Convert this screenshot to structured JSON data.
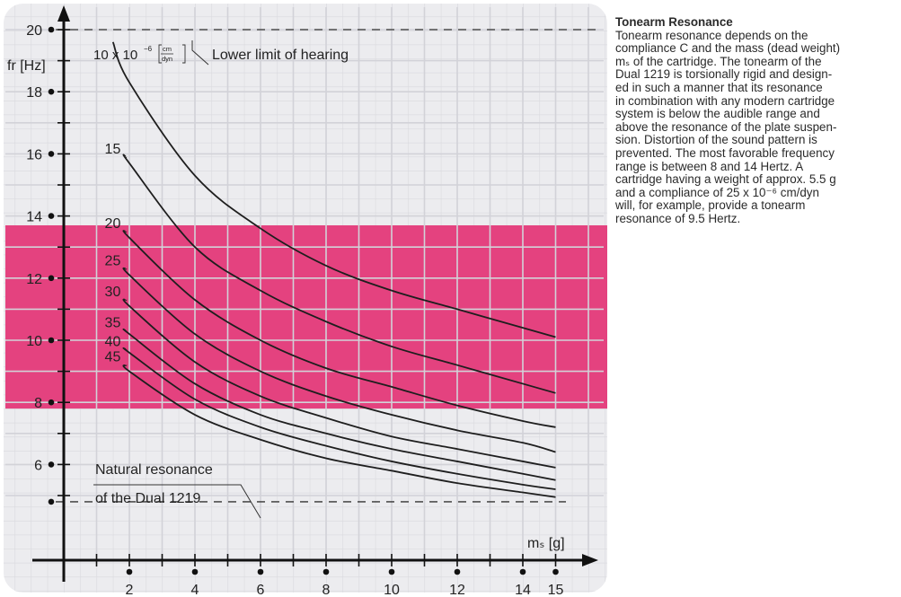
{
  "chart_data": {
    "type": "line",
    "xlabel": "mₛ [g]",
    "ylabel": "fr [Hz]",
    "xlim": [
      0,
      16
    ],
    "ylim": [
      4.2,
      20.2
    ],
    "x_ticks": [
      2,
      4,
      6,
      8,
      10,
      12,
      14,
      15
    ],
    "x_tick_labels": [
      "2",
      "4",
      "6",
      "8",
      "10",
      "12",
      "14",
      "15"
    ],
    "y_ticks": [
      6,
      8,
      10,
      12,
      14,
      16,
      18,
      20
    ],
    "y_tick_labels": [
      "6",
      "8",
      "10",
      "12",
      "14",
      "16",
      "18",
      "20"
    ],
    "grid": true,
    "favorable_band": {
      "from": 7.8,
      "to": 13.7,
      "color": "#e4427f"
    },
    "hearing_limit": {
      "y": 20,
      "label": "Lower limit of hearing"
    },
    "natural_resonance": {
      "y": 4.8,
      "label_line1": "Natural resonance",
      "label_line2": "of the Dual 1219"
    },
    "compliance_unit": {
      "prefix": "10 x 10",
      "exponent": "−6",
      "numerator": "cm",
      "denominator": "dyn"
    },
    "series": [
      {
        "name": "10",
        "x": [
          1.5,
          2,
          4,
          6,
          8,
          10,
          12,
          14,
          15
        ],
        "y": [
          19.6,
          18.3,
          15.3,
          13.6,
          12.4,
          11.6,
          11.0,
          10.4,
          10.1
        ]
      },
      {
        "name": "15",
        "x": [
          1.9,
          2,
          4,
          6,
          8,
          10,
          12,
          14,
          15
        ],
        "y": [
          15.9,
          15.7,
          13.0,
          11.6,
          10.6,
          9.8,
          9.2,
          8.6,
          8.3
        ]
      },
      {
        "name": "20",
        "x": [
          1.9,
          2,
          4,
          6,
          8,
          10,
          12,
          14,
          15
        ],
        "y": [
          13.5,
          13.3,
          11.3,
          10.0,
          9.1,
          8.5,
          7.9,
          7.4,
          7.2
        ]
      },
      {
        "name": "25",
        "x": [
          1.9,
          2,
          4,
          6,
          8,
          10,
          12,
          14,
          15
        ],
        "y": [
          12.3,
          12.1,
          10.2,
          9.0,
          8.2,
          7.6,
          7.1,
          6.7,
          6.4
        ]
      },
      {
        "name": "30",
        "x": [
          1.9,
          2,
          4,
          6,
          8,
          10,
          12,
          14,
          15
        ],
        "y": [
          11.3,
          11.1,
          9.3,
          8.2,
          7.5,
          6.9,
          6.5,
          6.1,
          5.9
        ]
      },
      {
        "name": "35",
        "x": [
          1.9,
          2,
          4,
          6,
          8,
          10,
          12,
          14,
          15
        ],
        "y": [
          10.3,
          10.2,
          8.6,
          7.6,
          7.0,
          6.5,
          6.1,
          5.7,
          5.5
        ]
      },
      {
        "name": "40",
        "x": [
          1.9,
          2,
          4,
          6,
          8,
          10,
          12,
          14,
          15
        ],
        "y": [
          9.7,
          9.6,
          8.1,
          7.2,
          6.6,
          6.1,
          5.7,
          5.35,
          5.2
        ]
      },
      {
        "name": "45",
        "x": [
          1.9,
          2,
          4,
          6,
          8,
          10,
          12,
          14,
          15
        ],
        "y": [
          9.2,
          9.0,
          7.6,
          6.8,
          6.2,
          5.8,
          5.4,
          5.1,
          4.95
        ]
      }
    ]
  },
  "sidebar": {
    "title": "Tonearm Resonance",
    "lines": [
      "Tonearm resonance depends on the",
      "compliance C and the mass (dead weight)",
      "mₛ of the cartridge. The tonearm of the",
      "Dual 1219 is torsionally rigid and design-",
      "ed in such a manner that its resonance",
      "in combination with any modern cartridge",
      "system is below the audible range and",
      "above the resonance of the plate suspen-",
      "sion. Distortion of the sound pattern is",
      "prevented. The most favorable frequency",
      "range is between 8 and 14 Hertz. A",
      "cartridge having a weight of approx. 5.5 g",
      "and a compliance of 25 x 10⁻⁶ cm/dyn",
      "will, for example, provide a tonearm",
      "resonance of 9.5 Hertz."
    ]
  }
}
